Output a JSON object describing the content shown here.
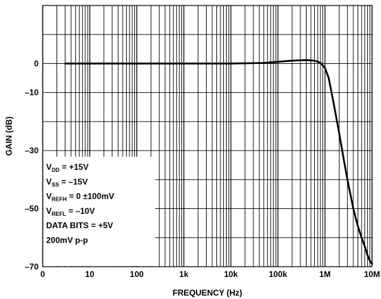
{
  "chart_data": {
    "type": "line",
    "title": "",
    "xlabel": "FREQUENCY (Hz)",
    "ylabel": "GAIN (dB)",
    "x_scale": "log",
    "xlim": [
      1,
      10000000
    ],
    "ylim": [
      -70,
      20
    ],
    "grid": true,
    "x_ticks": [
      {
        "value": 1,
        "label": "0"
      },
      {
        "value": 10,
        "label": "10"
      },
      {
        "value": 100,
        "label": "100"
      },
      {
        "value": 1000,
        "label": "1k"
      },
      {
        "value": 10000,
        "label": "10k"
      },
      {
        "value": 100000,
        "label": "100k"
      },
      {
        "value": 1000000,
        "label": "1M"
      },
      {
        "value": 10000000,
        "label": "10M"
      }
    ],
    "y_ticks": [
      {
        "value": 0,
        "label": "0"
      },
      {
        "value": -10,
        "label": "–10"
      },
      {
        "value": -30,
        "label": "–30"
      },
      {
        "value": -50,
        "label": "–50"
      },
      {
        "value": -70,
        "label": "–70"
      }
    ],
    "series": [
      {
        "x": [
          3,
          10,
          100,
          1000,
          10000,
          50000,
          100000,
          200000,
          400000,
          600000,
          800000,
          1000000,
          1200000,
          1500000,
          2000000,
          2500000,
          3000000,
          4000000,
          5000000,
          6000000,
          7000000,
          8000000,
          9000000,
          10000000
        ],
        "y": [
          0,
          0,
          0,
          0,
          0,
          0.2,
          0.6,
          1.0,
          1.2,
          1.0,
          0.3,
          -1.5,
          -5,
          -13,
          -24,
          -33,
          -40,
          -50,
          -56,
          -60,
          -63,
          -66,
          -68,
          -69
        ]
      }
    ],
    "annotation_lines": [
      {
        "main": "V",
        "sub": "DD",
        "rest": " = +15V"
      },
      {
        "main": "V",
        "sub": "SS",
        "rest": " = –15V"
      },
      {
        "main": "V",
        "sub": "REFH",
        "rest": " = 0 ±100mV"
      },
      {
        "main": "V",
        "sub": "REFL",
        "rest": " = –10V"
      },
      {
        "main": "DATA BITS = +5V",
        "sub": "",
        "rest": ""
      },
      {
        "main": "200mV p-p",
        "sub": "",
        "rest": ""
      }
    ]
  }
}
